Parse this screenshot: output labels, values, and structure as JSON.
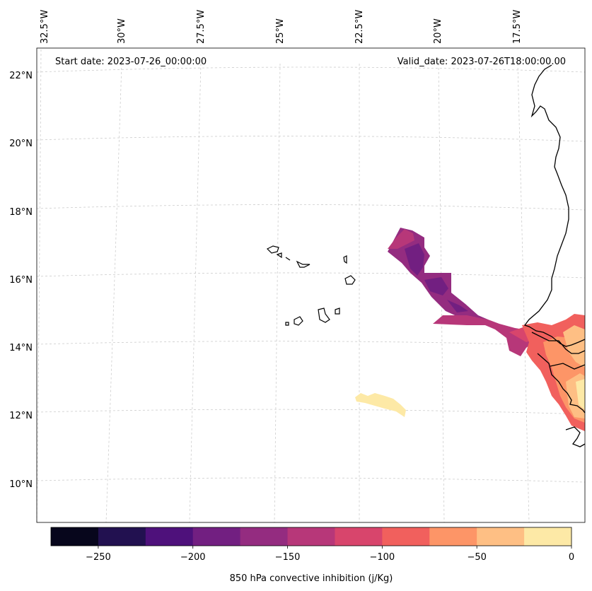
{
  "map": {
    "start_date": "Start date: 2023-07-26_00:00:00",
    "valid_date": "Valid_date: 2023-07-26T18:00:00.00",
    "lon_labels": [
      "32.5°W",
      "30°W",
      "27.5°W",
      "25°W",
      "22.5°W",
      "20°W",
      "17.5°W"
    ],
    "lat_labels": [
      "22°N",
      "20°N",
      "18°N",
      "16°N",
      "14°N",
      "12°N",
      "10°N"
    ],
    "features": {
      "land_outline": "coastline",
      "islands": "Cabo Verde"
    }
  },
  "colorbar": {
    "label": "850 hPa convective inhibition (j/Kg)",
    "ticks": [
      "−250",
      "−200",
      "−150",
      "−100",
      "−50",
      "0"
    ],
    "levels": [
      -275,
      -250,
      -225,
      -200,
      -175,
      -150,
      -125,
      -100,
      -75,
      -50,
      -25,
      0
    ],
    "colors": [
      "#07061c",
      "#221150",
      "#4e117b",
      "#721f81",
      "#942c80",
      "#b73779",
      "#d8456c",
      "#f1605d",
      "#fd9567",
      "#febf84",
      "#fde9a6"
    ]
  },
  "chart_data": {
    "type": "heatmap",
    "title": "850 hPa convective inhibition",
    "units": "j/Kg",
    "value_range": [
      -275,
      0
    ],
    "lon_range": [
      "32.5°W",
      "15.5°W"
    ],
    "lat_range": [
      "9°N",
      "22.5°N"
    ]
  }
}
